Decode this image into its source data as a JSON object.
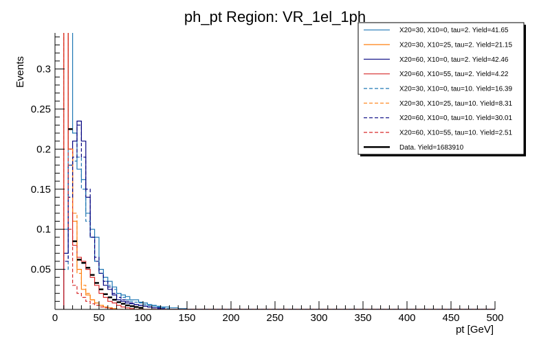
{
  "chart_data": {
    "type": "histogram-step",
    "title": "ph_pt Region: VR_1el_1ph",
    "xlabel": "pt [GeV]",
    "ylabel": "Events",
    "xlim": [
      0,
      500
    ],
    "ylim": [
      0,
      0.345
    ],
    "bin_width": 5,
    "x_start": 10,
    "x_ticks": [
      "0",
      "50",
      "100",
      "150",
      "200",
      "250",
      "300",
      "350",
      "400",
      "450",
      "500"
    ],
    "y_ticks": [
      "0.05",
      "0.1",
      "0.15",
      "0.2",
      "0.25",
      "0.3"
    ],
    "legend_position": "top-right",
    "series": [
      {
        "name": "X20=30, X10=0, tau=2. Yield=41.65",
        "color": "#1f77b4",
        "style": "solid",
        "values": [
          0.1,
          0.37,
          0.22,
          0.175,
          0.162,
          0.12,
          0.1,
          0.09,
          0.05,
          0.04,
          0.035,
          0.028,
          0.02,
          0.018,
          0.016,
          0.012,
          0.012,
          0.009,
          0.008,
          0.006,
          0.005,
          0.004,
          0.003,
          0.003,
          0.002,
          0.002,
          0.001,
          0.001
        ]
      },
      {
        "name": "X20=30, X10=25, tau=2. Yield=21.15",
        "color": "#ff7f0e",
        "style": "solid",
        "values": [
          0.4,
          0.2,
          0.11,
          0.05,
          0.025,
          0.018,
          0.012,
          0.008,
          0.005,
          0.003,
          0.002,
          0.001
        ]
      },
      {
        "name": "X20=60, X10=0, tau=2. Yield=42.46",
        "color": "#00007f",
        "style": "solid",
        "values": [
          0.07,
          0.18,
          0.21,
          0.235,
          0.21,
          0.14,
          0.09,
          0.06,
          0.045,
          0.03,
          0.025,
          0.018,
          0.012,
          0.01,
          0.008,
          0.007,
          0.006,
          0.005,
          0.004,
          0.003,
          0.002,
          0.002,
          0.001
        ]
      },
      {
        "name": "X20=60, X10=55, tau=2. Yield=4.22",
        "color": "#d62728",
        "style": "solid",
        "values": [
          0.35,
          0.2,
          0.08,
          0.065,
          0.06,
          0.05,
          0.04,
          0.03,
          0.02,
          0.015,
          0.01,
          0.008,
          0.005,
          0.003,
          0.002,
          0.001
        ]
      },
      {
        "name": "X20=30, X10=0, tau=10. Yield=16.39",
        "color": "#1f77b4",
        "style": "dashed",
        "values": [
          0.05,
          0.18,
          0.185,
          0.19,
          0.15,
          0.11,
          0.09,
          0.06,
          0.045,
          0.035,
          0.03,
          0.025,
          0.02,
          0.015,
          0.012,
          0.01,
          0.009,
          0.008,
          0.006,
          0.005,
          0.004,
          0.003,
          0.002,
          0.001
        ]
      },
      {
        "name": "X20=30, X10=25, tau=10. Yield=8.31",
        "color": "#ff7f0e",
        "style": "dashed",
        "values": [
          0.4,
          0.2,
          0.12,
          0.045,
          0.03,
          0.02,
          0.012,
          0.008,
          0.005,
          0.003,
          0.002,
          0.001
        ]
      },
      {
        "name": "X20=60, X10=0, tau=10. Yield=30.01",
        "color": "#00007f",
        "style": "dashed",
        "values": [
          0.06,
          0.14,
          0.19,
          0.23,
          0.19,
          0.15,
          0.09,
          0.065,
          0.045,
          0.035,
          0.028,
          0.02,
          0.015,
          0.012,
          0.01,
          0.008,
          0.006,
          0.005,
          0.004,
          0.003,
          0.002,
          0.001
        ]
      },
      {
        "name": "X20=60, X10=55, tau=10. Yield=2.51",
        "color": "#d62728",
        "style": "dashed",
        "values": [
          0.4,
          0.1,
          0.03,
          0.02,
          0.015,
          0.01,
          0.007,
          0.005,
          0.003,
          0.002,
          0.001
        ]
      }
    ],
    "data_points": {
      "name": "Data. Yield=1683910",
      "color": "#000000",
      "x": [
        17.5,
        22.5,
        27.5,
        32.5,
        37.5,
        42.5,
        47.5,
        52.5,
        57.5,
        62.5,
        67.5,
        72.5,
        77.5,
        82.5,
        87.5,
        92.5,
        97.5
      ],
      "y": [
        0.225,
        0.085,
        0.062,
        0.058,
        0.052,
        0.043,
        0.033,
        0.025,
        0.019,
        0.015,
        0.012,
        0.009,
        0.007,
        0.005,
        0.004,
        0.003,
        0.002
      ]
    }
  }
}
